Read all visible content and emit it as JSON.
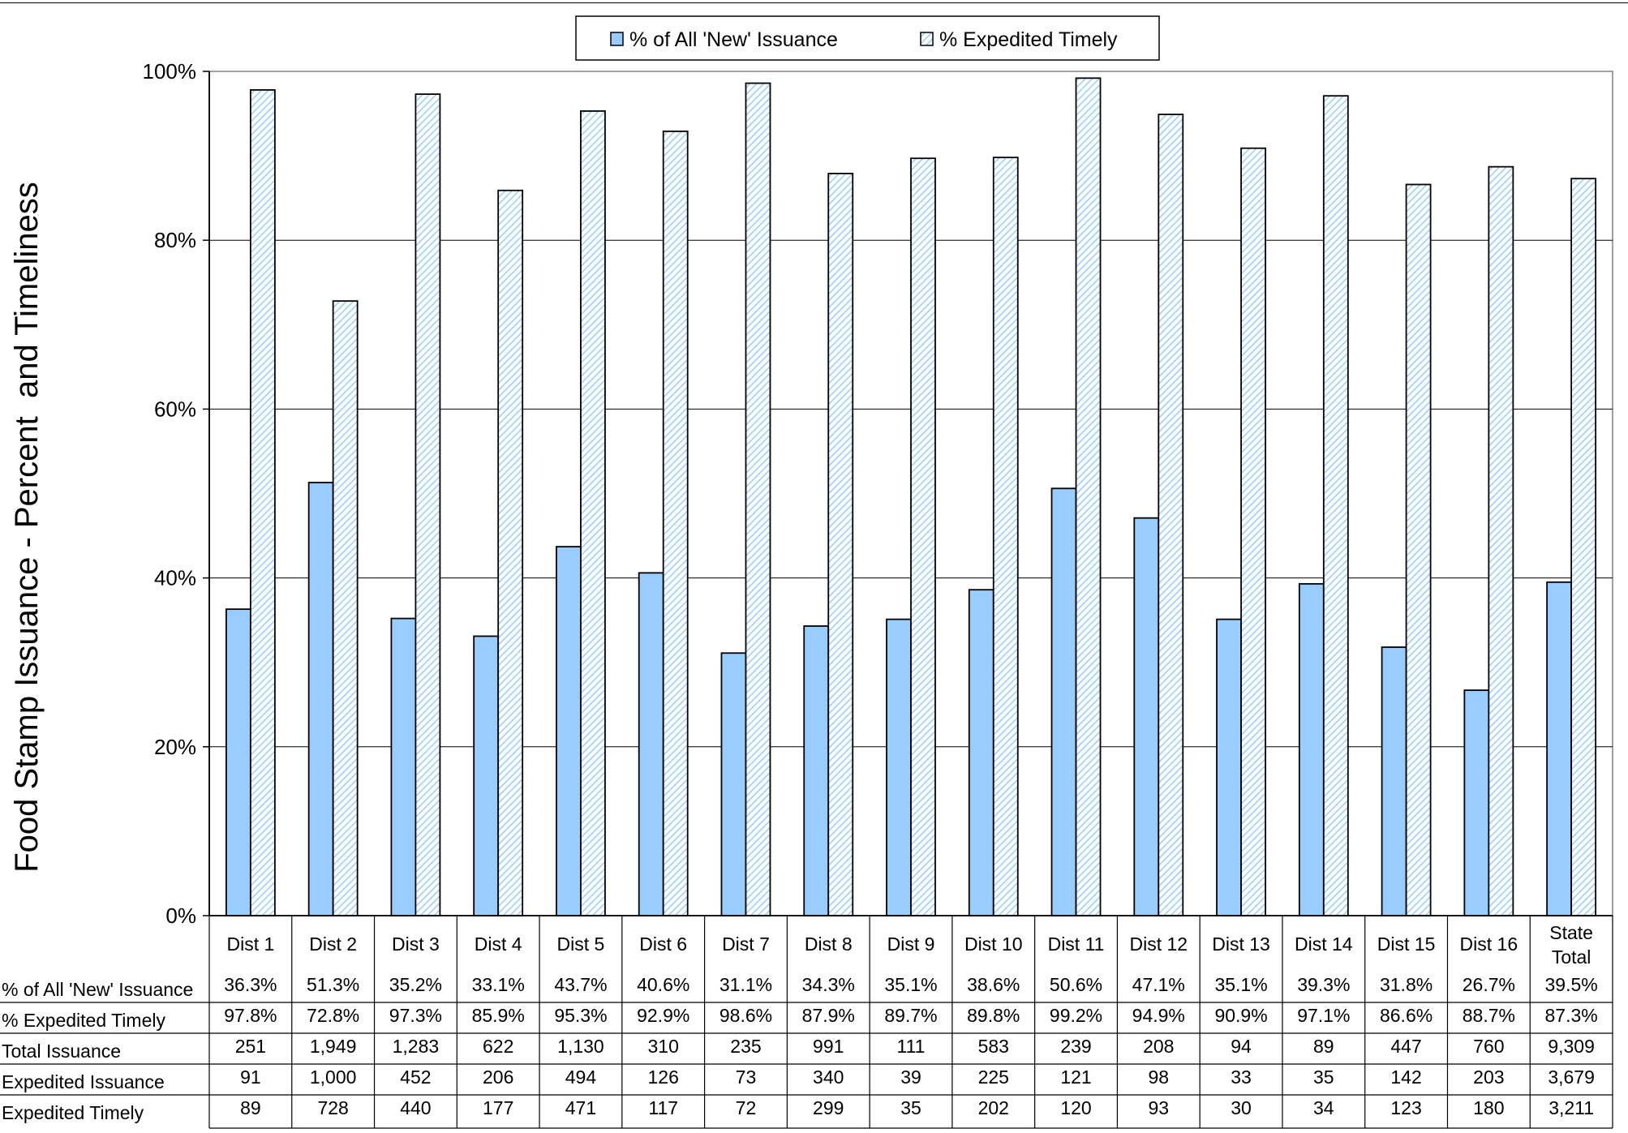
{
  "chart_data": {
    "type": "bar",
    "ylabel": "Food Stamp Issuance - Percent  and Timeliness",
    "ylim": [
      0,
      100
    ],
    "yticks": [
      "0%",
      "20%",
      "40%",
      "60%",
      "80%",
      "100%"
    ],
    "grid": true,
    "legend_position": "top-center",
    "categories": [
      [
        "Dist 1"
      ],
      [
        "Dist 2"
      ],
      [
        "Dist 3"
      ],
      [
        "Dist 4"
      ],
      [
        "Dist 5"
      ],
      [
        "Dist 6"
      ],
      [
        "Dist 7"
      ],
      [
        "Dist 8"
      ],
      [
        "Dist 9"
      ],
      [
        "Dist 10"
      ],
      [
        "Dist 11"
      ],
      [
        "Dist 12"
      ],
      [
        "Dist 13"
      ],
      [
        "Dist 14"
      ],
      [
        "Dist 15"
      ],
      [
        "Dist 16"
      ],
      [
        "State",
        "Total"
      ]
    ],
    "series": [
      {
        "name": "% of All 'New' Issuance",
        "color": "#99ccff",
        "pattern": "solid",
        "values": [
          36.3,
          51.3,
          35.2,
          33.1,
          43.7,
          40.6,
          31.1,
          34.3,
          35.1,
          38.6,
          50.6,
          47.1,
          35.1,
          39.3,
          31.8,
          26.7,
          39.5
        ]
      },
      {
        "name": "% Expedited Timely",
        "color": "#99ccff",
        "pattern": "diagonal-hatch",
        "values": [
          97.8,
          72.8,
          97.3,
          85.9,
          95.3,
          92.9,
          98.6,
          87.9,
          89.7,
          89.8,
          99.2,
          94.9,
          90.9,
          97.1,
          86.6,
          88.7,
          87.3
        ]
      }
    ],
    "table": {
      "rows": [
        {
          "label": "% of All 'New' Issuance",
          "cells": [
            "36.3%",
            "51.3%",
            "35.2%",
            "33.1%",
            "43.7%",
            "40.6%",
            "31.1%",
            "34.3%",
            "35.1%",
            "38.6%",
            "50.6%",
            "47.1%",
            "35.1%",
            "39.3%",
            "31.8%",
            "26.7%",
            "39.5%"
          ]
        },
        {
          "label": "% Expedited Timely",
          "cells": [
            "97.8%",
            "72.8%",
            "97.3%",
            "85.9%",
            "95.3%",
            "92.9%",
            "98.6%",
            "87.9%",
            "89.7%",
            "89.8%",
            "99.2%",
            "94.9%",
            "90.9%",
            "97.1%",
            "86.6%",
            "88.7%",
            "87.3%"
          ]
        },
        {
          "label": "Total Issuance",
          "cells": [
            "251",
            "1,949",
            "1,283",
            "622",
            "1,130",
            "310",
            "235",
            "991",
            "111",
            "583",
            "239",
            "208",
            "94",
            "89",
            "447",
            "760",
            "9,309"
          ]
        },
        {
          "label": "Expedited Issuance",
          "cells": [
            "91",
            "1,000",
            "452",
            "206",
            "494",
            "126",
            "73",
            "340",
            "39",
            "225",
            "121",
            "98",
            "33",
            "35",
            "142",
            "203",
            "3,679"
          ]
        },
        {
          "label": "Expedited Timely",
          "cells": [
            "89",
            "728",
            "440",
            "177",
            "471",
            "117",
            "72",
            "299",
            "35",
            "202",
            "120",
            "93",
            "30",
            "34",
            "123",
            "180",
            "3,211"
          ]
        }
      ]
    }
  }
}
